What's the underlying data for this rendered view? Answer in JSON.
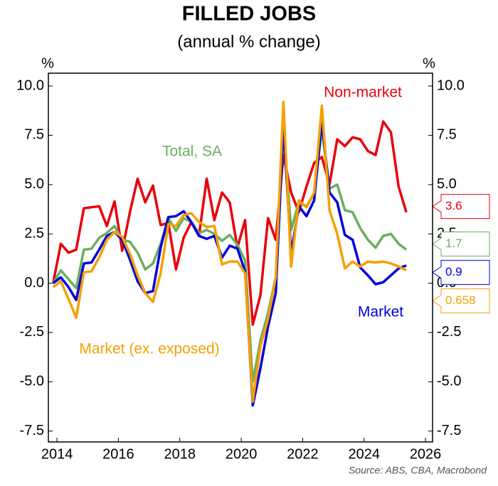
{
  "chart_data": {
    "type": "line",
    "title": "FILLED JOBS",
    "subtitle": "(annual % change)",
    "ylabel": "%",
    "source": "Source: ABS, CBA, Macrobond",
    "x": [
      2013.875,
      2014.125,
      2014.375,
      2014.625,
      2014.875,
      2015.125,
      2015.375,
      2015.625,
      2015.875,
      2016.125,
      2016.375,
      2016.625,
      2016.875,
      2017.125,
      2017.375,
      2017.625,
      2017.875,
      2018.125,
      2018.375,
      2018.625,
      2018.875,
      2019.125,
      2019.375,
      2019.625,
      2019.875,
      2020.125,
      2020.375,
      2020.625,
      2020.875,
      2021.125,
      2021.375,
      2021.625,
      2021.875,
      2022.125,
      2022.375,
      2022.625,
      2022.875,
      2023.125,
      2023.375,
      2023.625,
      2023.875,
      2024.125,
      2024.375,
      2024.625,
      2024.875,
      2025.125,
      2025.375
    ],
    "series": [
      {
        "name": "Non-market",
        "color": "#e8000b",
        "values": [
          0,
          2.0,
          1.55,
          1.7,
          3.8,
          3.85,
          3.9,
          2.9,
          4.15,
          1.65,
          3.6,
          5.3,
          4.1,
          4.95,
          2.95,
          3.05,
          0.7,
          2.3,
          3.1,
          2.4,
          5.3,
          3.2,
          4.6,
          4.1,
          1.8,
          3.2,
          -2.1,
          -0.6,
          3.3,
          2.2,
          6.5,
          4.6,
          3.6,
          4.9,
          6.1,
          6.4,
          5.0,
          7.3,
          6.95,
          7.4,
          7.3,
          6.7,
          6.5,
          8.2,
          7.65,
          4.9,
          3.6
        ]
      },
      {
        "name": "Total, SA",
        "color": "#6aaf5f",
        "values": [
          0,
          0.65,
          0.2,
          -0.25,
          1.7,
          1.75,
          2.3,
          2.55,
          2.9,
          2.2,
          2.1,
          1.55,
          0.7,
          1.0,
          2.0,
          3.3,
          2.65,
          3.3,
          3.1,
          2.55,
          2.7,
          2.5,
          2.15,
          2.45,
          1.95,
          1.15,
          -5.0,
          -2.9,
          -1.5,
          0.3,
          7.8,
          2.7,
          4.1,
          3.9,
          4.5,
          7.8,
          4.8,
          5.0,
          3.7,
          3.6,
          2.8,
          2.2,
          1.8,
          2.4,
          2.5,
          2.0,
          1.7
        ]
      },
      {
        "name": "Market",
        "color": "#0000e0",
        "values": [
          0,
          0.3,
          -0.2,
          -0.85,
          1.0,
          1.05,
          1.7,
          2.4,
          2.6,
          2.2,
          1.2,
          0.1,
          -0.5,
          -0.4,
          1.8,
          3.35,
          3.4,
          3.65,
          3.1,
          2.4,
          2.25,
          2.4,
          1.3,
          1.9,
          1.75,
          0.6,
          -6.2,
          -4.3,
          -2.2,
          -0.5,
          8.0,
          1.5,
          3.9,
          3.4,
          4.2,
          8.2,
          4.6,
          4.1,
          2.45,
          2.2,
          0.8,
          0.4,
          -0.05,
          0.05,
          0.4,
          0.75,
          0.9
        ]
      },
      {
        "name": "Market (ex. exposed)",
        "color": "#f5a000",
        "values": [
          -0.2,
          0.1,
          -0.8,
          -1.75,
          0.55,
          0.6,
          1.3,
          2.2,
          2.6,
          2.35,
          1.5,
          0.4,
          -0.5,
          -0.95,
          0.5,
          3.0,
          2.9,
          3.45,
          3.55,
          3.1,
          2.85,
          2.9,
          0.95,
          1.1,
          1.1,
          0.5,
          -6.0,
          -3.2,
          -1.8,
          0.3,
          9.2,
          0.85,
          4.2,
          3.85,
          4.6,
          9.0,
          3.7,
          2.5,
          0.75,
          1.1,
          0.85,
          1.1,
          1.05,
          1.1,
          1.0,
          0.85,
          0.658
        ]
      }
    ],
    "end_labels": true,
    "xlim": [
      2013.72,
      2026.23
    ],
    "xticks": [
      2014,
      2016,
      2018,
      2020,
      2022,
      2024,
      2026
    ],
    "ylim": [
      -8.05,
      10.65
    ],
    "yticks": [
      {
        "value": 10,
        "label": "10.0"
      },
      7.5,
      {
        "value": 5,
        "label": "5.0"
      },
      2.5,
      {
        "value": 0,
        "label": "0.0"
      },
      -2.5,
      {
        "value": -5,
        "label": "-5.0"
      },
      -7.5
    ],
    "grid": false
  }
}
